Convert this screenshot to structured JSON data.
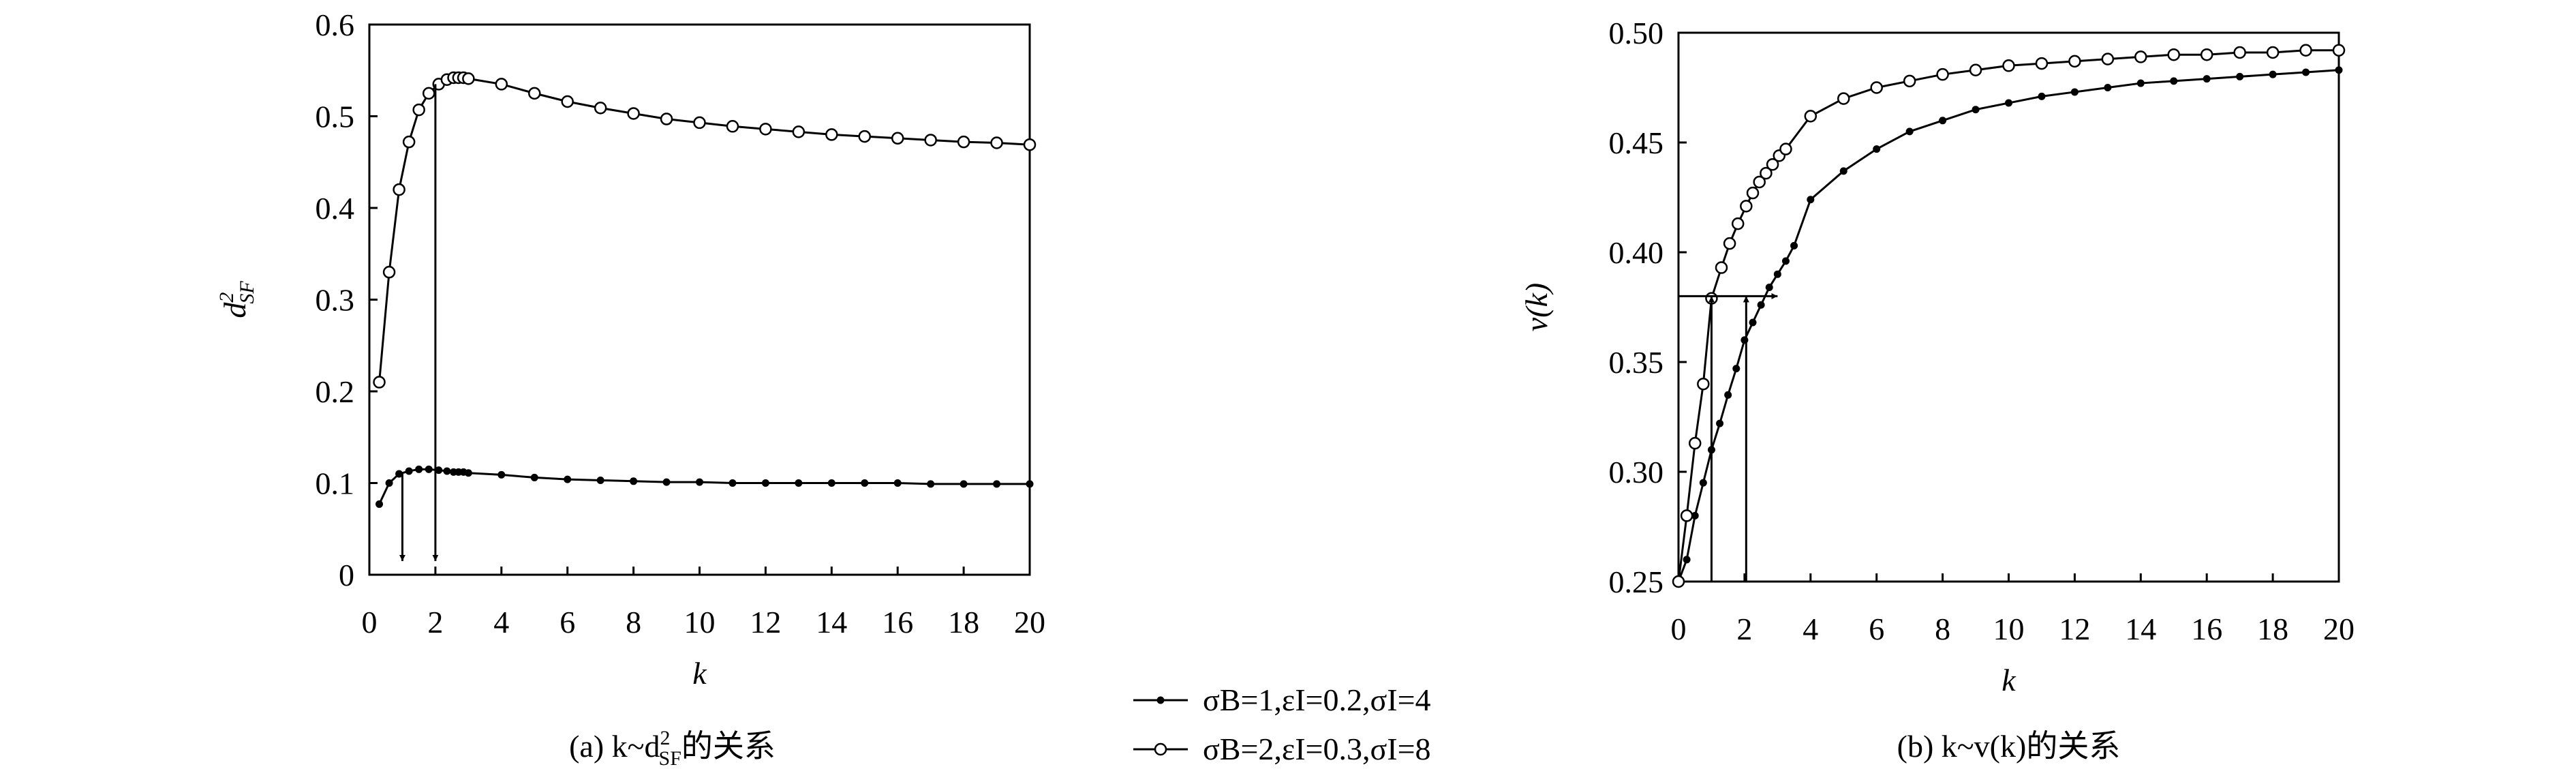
{
  "chart_data": [
    {
      "type": "line",
      "x_label": "k",
      "y_label": {
        "base": "d",
        "sup": "2",
        "sub": "SF"
      },
      "caption": {
        "prefix": "(a) k~d",
        "sup": "2",
        "sub": "SF",
        "suffix": "的关系"
      },
      "xlim": [
        0,
        20
      ],
      "xticks": [
        0,
        2,
        4,
        6,
        8,
        10,
        12,
        14,
        16,
        18,
        20
      ],
      "ylim": [
        0,
        0.6
      ],
      "yticks": [
        0,
        0.1,
        0.2,
        0.3,
        0.4,
        0.5,
        0.6
      ],
      "series": [
        {
          "name": "σB=1,εI=0.2,σI=4",
          "color": "#000000",
          "marker": "dot",
          "x": [
            0.3,
            0.6,
            0.9,
            1.2,
            1.5,
            1.8,
            2.1,
            2.35,
            2.55,
            2.7,
            2.85,
            3,
            4,
            5,
            6,
            7,
            8,
            9,
            10,
            11,
            12,
            13,
            14,
            15,
            16,
            17,
            18,
            19,
            20
          ],
          "values": [
            0.077,
            0.1,
            0.11,
            0.113,
            0.115,
            0.115,
            0.114,
            0.113,
            0.112,
            0.112,
            0.112,
            0.111,
            0.109,
            0.106,
            0.104,
            0.103,
            0.102,
            0.101,
            0.101,
            0.1,
            0.1,
            0.1,
            0.1,
            0.1,
            0.1,
            0.099,
            0.099,
            0.099,
            0.099
          ]
        },
        {
          "name": "σB=2,εI=0.3,σI=8",
          "color": "#000000",
          "marker": "circle",
          "x": [
            0.3,
            0.6,
            0.9,
            1.2,
            1.5,
            1.8,
            2.1,
            2.35,
            2.55,
            2.7,
            2.85,
            3,
            4,
            5,
            6,
            7,
            8,
            9,
            10,
            11,
            12,
            13,
            14,
            15,
            16,
            17,
            18,
            19,
            20
          ],
          "values": [
            0.21,
            0.33,
            0.42,
            0.472,
            0.507,
            0.525,
            0.535,
            0.54,
            0.542,
            0.542,
            0.542,
            0.541,
            0.535,
            0.525,
            0.516,
            0.509,
            0.503,
            0.497,
            0.493,
            0.489,
            0.486,
            0.483,
            0.48,
            0.478,
            0.476,
            0.474,
            0.472,
            0.471,
            0.469
          ]
        }
      ],
      "arrows": [
        {
          "from": [
            1,
            0.11
          ],
          "to": [
            1,
            0.015
          ]
        },
        {
          "from": [
            2,
            0.535
          ],
          "to": [
            2,
            0.015
          ]
        }
      ]
    },
    {
      "type": "line",
      "x_label": "k",
      "y_label": "v(k)",
      "caption": "(b) k~v(k)的关系",
      "xlim": [
        0,
        20
      ],
      "xticks": [
        0,
        2,
        4,
        6,
        8,
        10,
        12,
        14,
        16,
        18,
        20
      ],
      "ylim": [
        0.25,
        0.5
      ],
      "yticks": [
        0.25,
        {
          "value": 0.3,
          "label": "0.30"
        },
        0.35,
        {
          "value": 0.4,
          "label": "0.40"
        },
        0.45,
        {
          "value": 0.5,
          "label": "0.50"
        }
      ],
      "series": [
        {
          "color": "#000000",
          "marker": "dot",
          "x": [
            0,
            0.25,
            0.5,
            0.75,
            1,
            1.25,
            1.5,
            1.75,
            2,
            2.25,
            2.5,
            2.75,
            3,
            3.25,
            3.5,
            4,
            5,
            6,
            7,
            8,
            9,
            10,
            11,
            12,
            13,
            14,
            15,
            16,
            17,
            18,
            19,
            20
          ],
          "values": [
            0.25,
            0.26,
            0.28,
            0.295,
            0.31,
            0.322,
            0.335,
            0.347,
            0.36,
            0.368,
            0.376,
            0.384,
            0.39,
            0.396,
            0.403,
            0.424,
            0.437,
            0.447,
            0.455,
            0.46,
            0.465,
            0.468,
            0.471,
            0.473,
            0.475,
            0.477,
            0.478,
            0.479,
            0.48,
            0.481,
            0.482,
            0.483
          ]
        },
        {
          "color": "#000000",
          "marker": "circle",
          "x": [
            0,
            0.25,
            0.5,
            0.75,
            1,
            1.3,
            1.55,
            1.8,
            2.05,
            2.25,
            2.45,
            2.65,
            2.85,
            3.05,
            3.25,
            4,
            5,
            6,
            7,
            8,
            9,
            10,
            11,
            12,
            13,
            14,
            15,
            16,
            17,
            18,
            19,
            20
          ],
          "values": [
            0.25,
            0.28,
            0.313,
            0.34,
            0.379,
            0.393,
            0.404,
            0.413,
            0.421,
            0.427,
            0.432,
            0.436,
            0.44,
            0.444,
            0.447,
            0.462,
            0.47,
            0.475,
            0.478,
            0.481,
            0.483,
            0.485,
            0.486,
            0.487,
            0.488,
            0.489,
            0.49,
            0.49,
            0.491,
            0.491,
            0.492,
            0.492
          ]
        }
      ],
      "arrows": [
        {
          "from": [
            0,
            0.38
          ],
          "to": [
            3,
            0.38
          ]
        },
        {
          "from": [
            1,
            0.25
          ],
          "to": [
            1,
            0.38
          ]
        },
        {
          "from": [
            2.05,
            0.25
          ],
          "to": [
            2.05,
            0.38
          ]
        }
      ]
    }
  ]
}
